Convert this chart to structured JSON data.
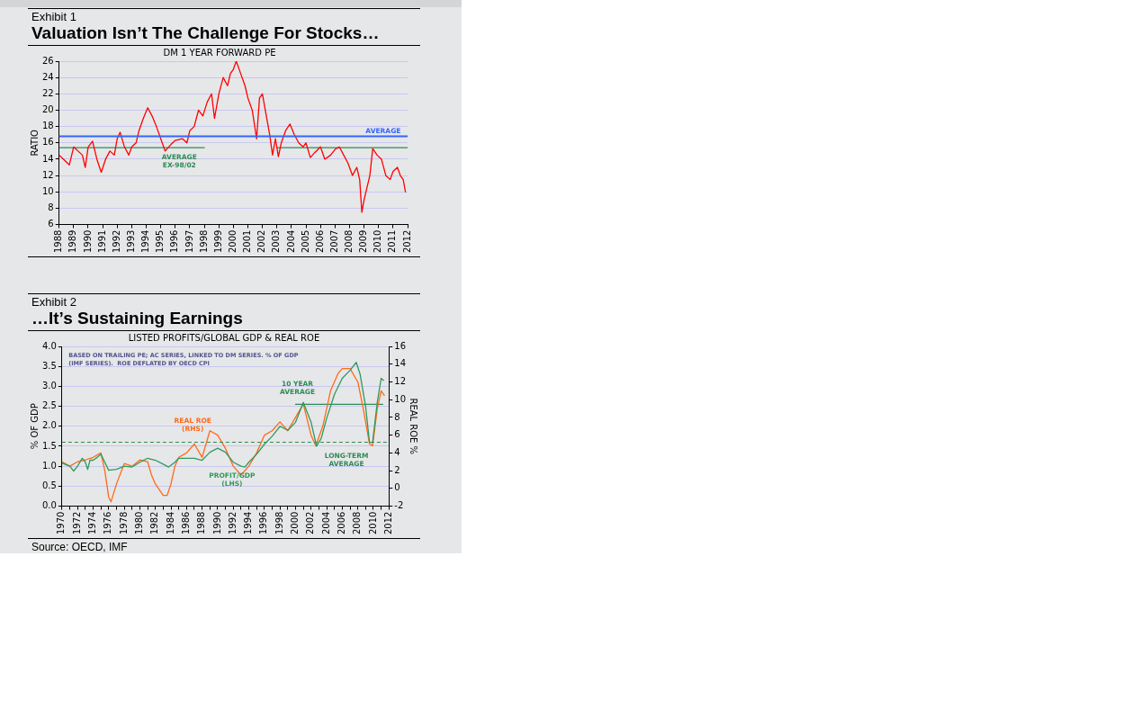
{
  "chart_data": [
    {
      "type": "line",
      "title": "Valuation Isn’t The Challenge For Stocks…",
      "subtitle": "DM 1 YEAR FORWARD PE",
      "ylabel": "RATIO",
      "annotations": [
        "Exhibit 1"
      ],
      "xlim": [
        1988,
        2012
      ],
      "xticks": [
        1988,
        1989,
        1990,
        1991,
        1992,
        1993,
        1994,
        1995,
        1996,
        1997,
        1998,
        1999,
        2000,
        2001,
        2002,
        2003,
        2004,
        2005,
        2006,
        2007,
        2008,
        2009,
        2010,
        2011,
        2012
      ],
      "ylim": [
        6,
        26
      ],
      "yticks": [
        6,
        8,
        10,
        12,
        14,
        16,
        18,
        20,
        22,
        24,
        26
      ],
      "grid": "y",
      "legend": false,
      "marker": "none",
      "line_style": "solid",
      "ref_lines": [
        {
          "axis": "y",
          "value": 16.8,
          "label": "AVERAGE",
          "color": "#3366ff"
        }
      ],
      "series": [
        {
          "color": "#ff0000",
          "x": [
            1988.0,
            1988.3,
            1988.7,
            1989.0,
            1989.3,
            1989.6,
            1989.8,
            1990.0,
            1990.3,
            1990.6,
            1990.9,
            1991.2,
            1991.5,
            1991.8,
            1992.0,
            1992.2,
            1992.5,
            1992.8,
            1993.0,
            1993.3,
            1993.5,
            1993.8,
            1994.1,
            1994.4,
            1994.7,
            1995.0,
            1995.3,
            1995.7,
            1996.0,
            1996.5,
            1996.8,
            1997.0,
            1997.3,
            1997.6,
            1997.9,
            1998.2,
            1998.5,
            1998.7,
            1999.0,
            1999.3,
            1999.6,
            1999.8,
            2000.0,
            2000.2,
            2000.5,
            2000.8,
            2001.0,
            2001.3,
            2001.6,
            2001.8,
            2002.0,
            2002.2,
            2002.5,
            2002.7,
            2002.9,
            2003.1,
            2003.3,
            2003.6,
            2003.9,
            2004.2,
            2004.5,
            2004.8,
            2005.0,
            2005.3,
            2005.6,
            2006.0,
            2006.3,
            2006.7,
            2007.0,
            2007.3,
            2007.6,
            2007.9,
            2008.2,
            2008.5,
            2008.7,
            2008.85,
            2009.0,
            2009.2,
            2009.4,
            2009.6,
            2009.9,
            2010.2,
            2010.5,
            2010.8,
            2011.0,
            2011.3,
            2011.5,
            2011.7,
            2011.85
          ],
          "values": [
            14.5,
            14,
            13.3,
            15.5,
            15,
            14.5,
            13,
            15.5,
            16.2,
            14,
            12.4,
            14,
            15,
            14.5,
            16.5,
            17.3,
            15.5,
            14.5,
            15.5,
            16,
            17.5,
            19,
            20.3,
            19.3,
            18,
            16.5,
            15,
            15.8,
            16.3,
            16.5,
            16,
            17.5,
            18,
            20,
            19.3,
            21,
            22,
            19,
            22,
            24,
            23,
            24.5,
            25,
            26,
            24.5,
            23,
            21.5,
            20,
            16.5,
            21.5,
            22,
            20,
            17,
            14.5,
            16.5,
            14.3,
            16,
            17.5,
            18.3,
            17,
            16,
            15.5,
            16,
            14.2,
            14.8,
            15.5,
            14,
            14.5,
            15.2,
            15.5,
            14.5,
            13.5,
            12,
            13,
            11.5,
            7.5,
            9,
            10.5,
            12,
            15.3,
            14.5,
            14,
            12,
            11.5,
            12.5,
            13,
            12,
            11.5,
            10
          ]
        },
        {
          "name": "AVERAGE EX-98/02",
          "color": "#2e8b57",
          "x": [
            1988,
            1998,
            2000,
            2003,
            2012
          ],
          "values": [
            15.4,
            15.4,
            null,
            15.4,
            15.4
          ]
        }
      ]
    },
    {
      "type": "line",
      "title": "…It’s Sustaining Earnings",
      "subtitle": "LISTED PROFITS/GLOBAL GDP & REAL ROE",
      "ylabel": "% OF GDP",
      "y2label": "REAL ROE %",
      "annotations": [
        "Exhibit 2",
        "BASED ON TRAILING PE; AC SERIES, LINKED TO DM SERIES. % OF GDP (IMF SERIES).  ROE DEFLATED BY OECD CPI",
        "Source: OECD, IMF"
      ],
      "xlim": [
        1970,
        2012
      ],
      "xticks": [
        1970,
        {
          "value": 1971,
          "label": null
        },
        1972,
        {
          "value": 1973,
          "label": null
        },
        1974,
        {
          "value": 1975,
          "label": null
        },
        1976,
        {
          "value": 1977,
          "label": null
        },
        1978,
        {
          "value": 1979,
          "label": null
        },
        1980,
        {
          "value": 1981,
          "label": null
        },
        1982,
        {
          "value": 1983,
          "label": null
        },
        1984,
        {
          "value": 1985,
          "label": null
        },
        1986,
        {
          "value": 1987,
          "label": null
        },
        1988,
        {
          "value": 1989,
          "label": null
        },
        1990,
        {
          "value": 1991,
          "label": null
        },
        1992,
        {
          "value": 1993,
          "label": null
        },
        1994,
        {
          "value": 1995,
          "label": null
        },
        1996,
        {
          "value": 1997,
          "label": null
        },
        1998,
        {
          "value": 1999,
          "label": null
        },
        2000,
        {
          "value": 2001,
          "label": null
        },
        2002,
        {
          "value": 2003,
          "label": null
        },
        2004,
        {
          "value": 2005,
          "label": null
        },
        2006,
        {
          "value": 2007,
          "label": null
        },
        2008,
        {
          "value": 2009,
          "label": null
        },
        2010,
        {
          "value": 2011,
          "label": null
        },
        2012
      ],
      "ylim": [
        0,
        4
      ],
      "yticks": [
        {
          "value": 0,
          "label": "0.0"
        },
        0.5,
        {
          "value": 1,
          "label": "1.0"
        },
        1.5,
        {
          "value": 2,
          "label": "2.0"
        },
        2.5,
        {
          "value": 3,
          "label": "3.0"
        },
        3.5,
        {
          "value": 4,
          "label": "4.0"
        }
      ],
      "y2lim": [
        -2,
        16
      ],
      "y2ticks": [
        -2,
        0,
        2,
        4,
        6,
        8,
        10,
        12,
        14,
        16
      ],
      "grid": "y",
      "legend": false,
      "marker": "none",
      "line_style": "solid",
      "ref_lines": [
        {
          "axis": "y",
          "value": 1.6,
          "label": "LONG-TERM AVERAGE",
          "color": "#2e8b57",
          "line_style": "dashed"
        }
      ],
      "series": [
        {
          "name": "PROFIT/GDP (LHS)",
          "color": "#2e9a5e",
          "x": [
            1970,
            1971,
            1971.5,
            1972,
            1972.6,
            1973,
            1973.3,
            1973.6,
            1974,
            1974.5,
            1975,
            1975.5,
            1976,
            1977,
            1978,
            1979,
            1980,
            1981,
            1982,
            1983,
            1983.7,
            1984.5,
            1985,
            1986,
            1987,
            1988,
            1989,
            1990,
            1991,
            1992,
            1993,
            1993.5,
            1994,
            1995,
            1996,
            1997,
            1998,
            1999,
            2000,
            2001,
            2002,
            2002.7,
            2003.3,
            2004,
            2005,
            2006,
            2007,
            2007.8,
            2008.3,
            2009,
            2009.5,
            2009.9,
            2010.5,
            2011,
            2011.3
          ],
          "values": [
            1.08,
            1.0,
            0.88,
            1.0,
            1.2,
            1.1,
            0.92,
            1.15,
            1.15,
            1.22,
            1.3,
            1.1,
            0.9,
            0.92,
            1.0,
            0.98,
            1.1,
            1.2,
            1.15,
            1.05,
            0.98,
            1.1,
            1.2,
            1.2,
            1.2,
            1.15,
            1.35,
            1.45,
            1.35,
            1.1,
            1.0,
            0.98,
            1.1,
            1.3,
            1.55,
            1.75,
            2.0,
            1.9,
            2.1,
            2.6,
            2.1,
            1.5,
            1.7,
            2.2,
            2.8,
            3.2,
            3.4,
            3.6,
            3.3,
            2.5,
            1.6,
            1.6,
            2.6,
            3.2,
            3.15
          ]
        },
        {
          "name": "REAL ROE (RHS)",
          "color": "#ff6a1a",
          "axis": "y2",
          "x": [
            1970,
            1971,
            1972,
            1973,
            1974,
            1975,
            1975.5,
            1976,
            1976.3,
            1977,
            1978,
            1979,
            1980,
            1981,
            1981.5,
            1982,
            1983,
            1983.5,
            1984,
            1984.5,
            1985,
            1986,
            1987,
            1988,
            1989,
            1990,
            1991,
            1992,
            1993,
            1994,
            1995,
            1996,
            1997,
            1998,
            1999,
            2000,
            2001,
            2002,
            2002.6,
            2003.5,
            2004.5,
            2005.5,
            2006,
            2007,
            2008,
            2008.7,
            2009.5,
            2009.9,
            2010.5,
            2011,
            2011.4
          ],
          "values": [
            3,
            2.5,
            3,
            3.2,
            3.5,
            4,
            2,
            -1,
            -1.5,
            0.5,
            2.8,
            2.5,
            3.2,
            3,
            1.5,
            0.5,
            -0.8,
            -0.8,
            0.5,
            2.5,
            3.5,
            4,
            5,
            3.5,
            6.5,
            6,
            4.5,
            2.5,
            1.5,
            2.5,
            4,
            6,
            6.5,
            7.5,
            6.5,
            8,
            9.5,
            6,
            4.8,
            7,
            11,
            13,
            13.5,
            13.5,
            12,
            9,
            5,
            4.8,
            9,
            11,
            10.5
          ]
        },
        {
          "name": "10 YEAR AVERAGE",
          "color": "#2e8b57",
          "x": [
            2000,
            2011.2
          ],
          "values": [
            2.55,
            2.55
          ]
        }
      ]
    }
  ]
}
